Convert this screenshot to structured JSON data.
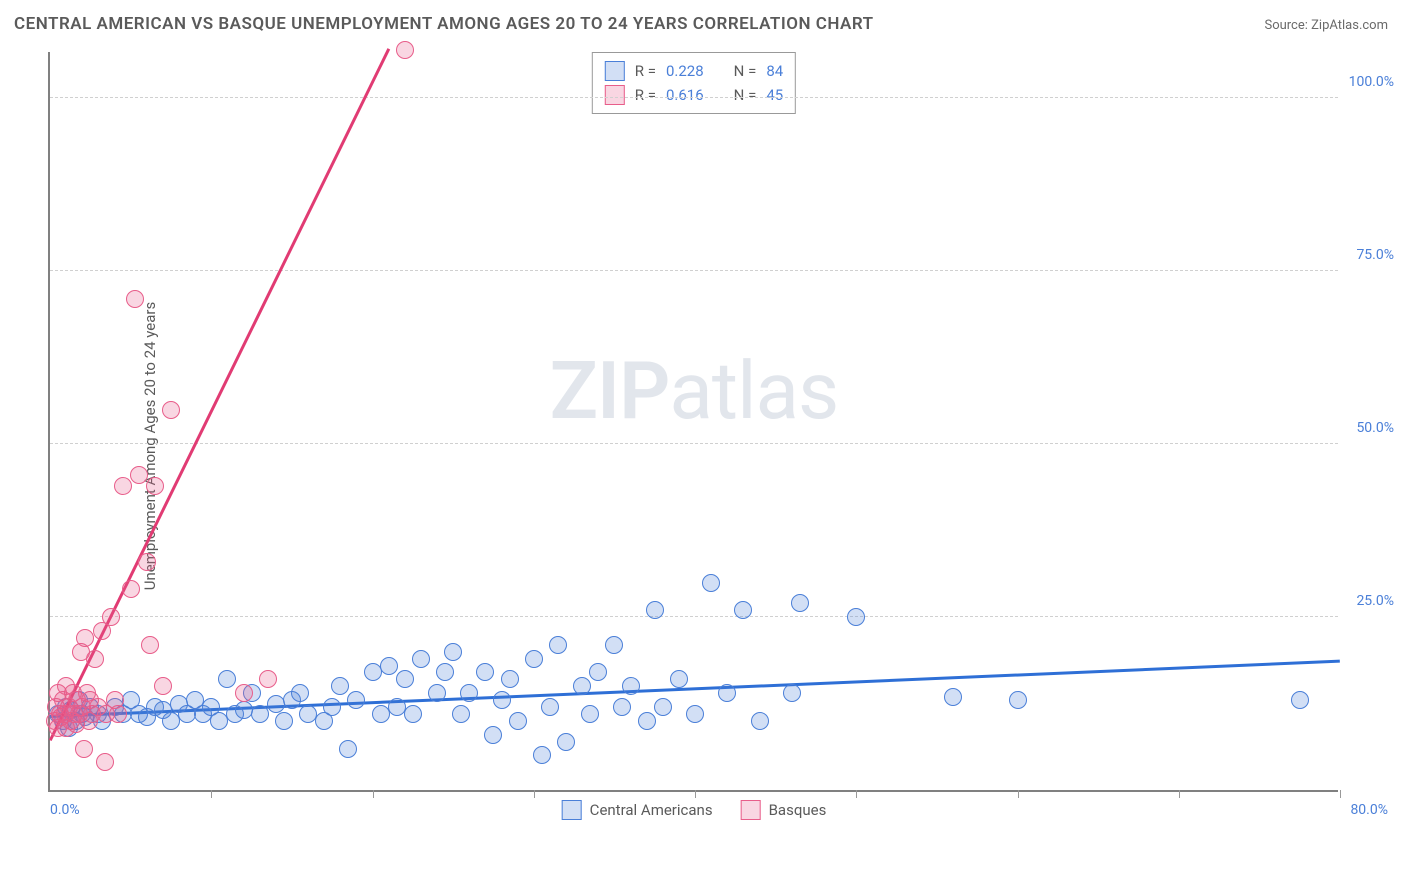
{
  "title": "CENTRAL AMERICAN VS BASQUE UNEMPLOYMENT AMONG AGES 20 TO 24 YEARS CORRELATION CHART",
  "source": "Source: ZipAtlas.com",
  "ylabel": "Unemployment Among Ages 20 to 24 years",
  "watermark_bold": "ZIP",
  "watermark_rest": "atlas",
  "chart": {
    "type": "scatter",
    "xlim": [
      0,
      80
    ],
    "ylim": [
      0,
      107
    ],
    "x_tick_step": 10,
    "y_ticks": [
      25,
      50,
      75,
      100
    ],
    "y_tick_labels": [
      "25.0%",
      "50.0%",
      "75.0%",
      "100.0%"
    ],
    "x_min_label": "0.0%",
    "x_max_label": "80.0%",
    "background_color": "#ffffff",
    "grid_color": "#d0d0d0",
    "axis_color": "#808080",
    "label_color": "#4a7fd8",
    "marker_radius": 9,
    "marker_stroke_width": 1.5,
    "marker_fill_opacity": 0.25,
    "series": [
      {
        "name": "Central Americans",
        "color_stroke": "#4a7fd8",
        "color_fill": "rgba(74,127,216,0.25)",
        "r": 0.228,
        "n": 84,
        "trend": {
          "x1": 0,
          "y1": 10.5,
          "x2": 80,
          "y2": 18.5,
          "color": "#2e6fd6",
          "width": 2.5
        },
        "points": [
          [
            0.5,
            11
          ],
          [
            0.8,
            10
          ],
          [
            1,
            12
          ],
          [
            1.2,
            9
          ],
          [
            1.3,
            11.5
          ],
          [
            1.6,
            10
          ],
          [
            1.8,
            13
          ],
          [
            2,
            11
          ],
          [
            2.2,
            10.5
          ],
          [
            2.5,
            12
          ],
          [
            3,
            11
          ],
          [
            3.2,
            10
          ],
          [
            4,
            12
          ],
          [
            4.5,
            11
          ],
          [
            5,
            13
          ],
          [
            5.5,
            11
          ],
          [
            6,
            10.5
          ],
          [
            6.5,
            12
          ],
          [
            7,
            11.5
          ],
          [
            7.5,
            10
          ],
          [
            8,
            12.5
          ],
          [
            8.5,
            11
          ],
          [
            9,
            13
          ],
          [
            9.5,
            11
          ],
          [
            10,
            12
          ],
          [
            10.5,
            10
          ],
          [
            11,
            16
          ],
          [
            11.5,
            11
          ],
          [
            12,
            11.5
          ],
          [
            12.5,
            14
          ],
          [
            13,
            11
          ],
          [
            14,
            12.5
          ],
          [
            14.5,
            10
          ],
          [
            15,
            13
          ],
          [
            15.5,
            14
          ],
          [
            16,
            11
          ],
          [
            17,
            10
          ],
          [
            17.5,
            12
          ],
          [
            18,
            15
          ],
          [
            18.5,
            6
          ],
          [
            19,
            13
          ],
          [
            20,
            17
          ],
          [
            20.5,
            11
          ],
          [
            21,
            18
          ],
          [
            21.5,
            12
          ],
          [
            22,
            16
          ],
          [
            22.5,
            11
          ],
          [
            23,
            19
          ],
          [
            24,
            14
          ],
          [
            24.5,
            17
          ],
          [
            25,
            20
          ],
          [
            25.5,
            11
          ],
          [
            26,
            14
          ],
          [
            27,
            17
          ],
          [
            27.5,
            8
          ],
          [
            28,
            13
          ],
          [
            28.5,
            16
          ],
          [
            29,
            10
          ],
          [
            30,
            19
          ],
          [
            30.5,
            5
          ],
          [
            31,
            12
          ],
          [
            31.5,
            21
          ],
          [
            32,
            7
          ],
          [
            33,
            15
          ],
          [
            33.5,
            11
          ],
          [
            34,
            17
          ],
          [
            35,
            21
          ],
          [
            35.5,
            12
          ],
          [
            36,
            15
          ],
          [
            37,
            10
          ],
          [
            37.5,
            26
          ],
          [
            38,
            12
          ],
          [
            39,
            16
          ],
          [
            40,
            11
          ],
          [
            41,
            30
          ],
          [
            42,
            14
          ],
          [
            43,
            26
          ],
          [
            44,
            10
          ],
          [
            46,
            14
          ],
          [
            46.5,
            27
          ],
          [
            50,
            25
          ],
          [
            56,
            13.5
          ],
          [
            60,
            13
          ],
          [
            77.5,
            13
          ]
        ]
      },
      {
        "name": "Basques",
        "color_stroke": "#e85d8a",
        "color_fill": "rgba(232,93,138,0.25)",
        "r": 0.616,
        "n": 45,
        "trend": {
          "x1": 0,
          "y1": 7,
          "x2": 21,
          "y2": 107,
          "color": "#e13b73",
          "width": 2.5
        },
        "points": [
          [
            0.3,
            10
          ],
          [
            0.4,
            12
          ],
          [
            0.5,
            9
          ],
          [
            0.5,
            14
          ],
          [
            0.6,
            11
          ],
          [
            0.7,
            10.5
          ],
          [
            0.8,
            13
          ],
          [
            0.9,
            11
          ],
          [
            1,
            9
          ],
          [
            1,
            15
          ],
          [
            1.2,
            12
          ],
          [
            1.3,
            10
          ],
          [
            1.4,
            14
          ],
          [
            1.5,
            11
          ],
          [
            1.6,
            9.5
          ],
          [
            1.7,
            13
          ],
          [
            1.8,
            11
          ],
          [
            1.9,
            20
          ],
          [
            2,
            12
          ],
          [
            2.1,
            6
          ],
          [
            2.2,
            22
          ],
          [
            2.3,
            14
          ],
          [
            2.4,
            10
          ],
          [
            2.5,
            13
          ],
          [
            2.6,
            11
          ],
          [
            2.8,
            19
          ],
          [
            3,
            12
          ],
          [
            3.2,
            23
          ],
          [
            3.4,
            4
          ],
          [
            3.5,
            11
          ],
          [
            3.8,
            25
          ],
          [
            4,
            13
          ],
          [
            4.2,
            11
          ],
          [
            4.5,
            44
          ],
          [
            5,
            29
          ],
          [
            5.5,
            45.5
          ],
          [
            6,
            33
          ],
          [
            6.2,
            21
          ],
          [
            6.5,
            44
          ],
          [
            7,
            15
          ],
          [
            7.5,
            55
          ],
          [
            5.3,
            71
          ],
          [
            12,
            14
          ],
          [
            13.5,
            16
          ],
          [
            22,
            107
          ]
        ]
      }
    ]
  },
  "legend": {
    "r_label": "R =",
    "n_label": "N ="
  }
}
